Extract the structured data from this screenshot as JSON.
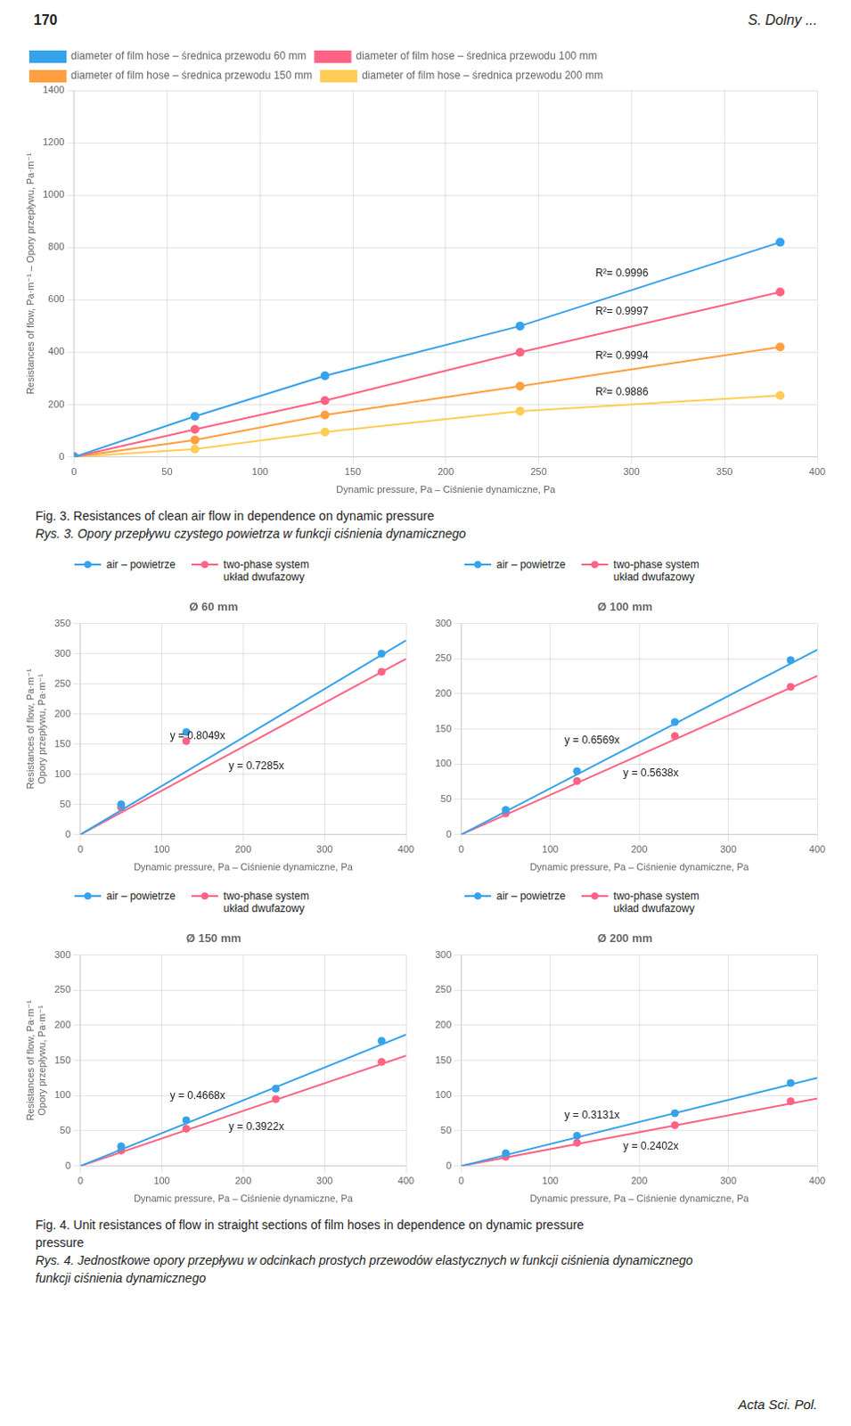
{
  "page": {
    "header_left": "170",
    "header_right": "S. Dolny ...",
    "footer": "Acta Sci. Pol.",
    "fig4_caption": {
      "english": [
        "Fig. 4. Unit resistances of flow in straight sections of film hoses in dependence on dynamic pressure",
        "pressure"
      ],
      "polish": [
        "Rys. 4. Jednostkowe opory przepływu w odcinkach prostych przewodów elastycznych w funkcji ciśnienia dynamicznego",
        "funkcji ciśnienia dynamicznego"
      ]
    }
  },
  "chart_data": [
    {
      "type": "line",
      "xlabel": "Dynamic pressure, Pa – Ciśnienie dynamiczne, Pa",
      "ylabel": "Resistances of flow, Pa·m⁻¹ – Opory przepływu, Pa·m⁻¹",
      "xlim": [
        0,
        400
      ],
      "ylim": [
        0,
        1400
      ],
      "xticks": [
        0,
        50,
        100,
        150,
        200,
        250,
        300,
        350,
        400
      ],
      "yticks": [
        0,
        200,
        400,
        600,
        800,
        1000,
        1200,
        1400
      ],
      "grid": true,
      "legend": "upper left",
      "caption": {
        "english": [
          "Fig. 3. Resistances of clean air flow in dependence on dynamic pressure"
        ],
        "polish": [
          "Rys. 3. Opory przepływu czystego powietrza w funkcji ciśnienia dynamicznego"
        ]
      },
      "series": [
        {
          "name": "diameter of film hose – średnica przewodu 60 mm",
          "x": [
            0,
            65,
            135,
            240,
            380
          ],
          "values": [
            0,
            155,
            310,
            500,
            820
          ],
          "marker": "circle",
          "annotation": "R²= 0.9996"
        },
        {
          "name": "diameter of film hose – średnica przewodu 100 mm",
          "x": [
            0,
            65,
            135,
            240,
            380
          ],
          "values": [
            0,
            105,
            215,
            400,
            630
          ],
          "marker": "circle",
          "annotation": "R²= 0.9997"
        },
        {
          "name": "diameter of film hose – średnica przewodu 150 mm",
          "x": [
            0,
            65,
            135,
            240,
            380
          ],
          "values": [
            0,
            65,
            160,
            270,
            420
          ],
          "marker": "circle",
          "annotation": "R²= 0.9994"
        },
        {
          "name": "diameter of film hose – średnica przewodu 200 mm",
          "x": [
            0,
            65,
            135,
            240,
            380
          ],
          "values": [
            0,
            30,
            95,
            175,
            235
          ],
          "marker": "circle",
          "annotation": "R²= 0.9886"
        }
      ]
    },
    {
      "type": "scatter",
      "title": "Ø 60 mm",
      "xlabel": "Dynamic pressure, Pa – Ciśnienie dynamiczne, Pa",
      "ylabel": [
        "Resistances of flow, Pa·m⁻¹",
        "Opory przepływu, Pa·m⁻¹"
      ],
      "xlim": [
        0,
        400
      ],
      "ylim": [
        0,
        350
      ],
      "xticks": [
        0,
        100,
        200,
        300,
        400
      ],
      "yticks": [
        0,
        50,
        100,
        150,
        200,
        250,
        300,
        350
      ],
      "grid": true,
      "legend": "upper left",
      "series": [
        {
          "name": "air – powietrze",
          "x": [
            50,
            130,
            370
          ],
          "values": [
            50,
            170,
            300
          ],
          "marker": "circle",
          "trend_x": [
            0,
            400
          ],
          "trend_values": [
            0,
            321.96
          ],
          "annotation": "y = 0.8049x"
        },
        {
          "name": "two-phase system\nukład dwufazowy",
          "x": [
            50,
            130,
            370
          ],
          "values": [
            45,
            155,
            270
          ],
          "marker": "circle",
          "trend_x": [
            0,
            400
          ],
          "trend_values": [
            0,
            291.4
          ],
          "annotation": "y = 0.7285x"
        }
      ]
    },
    {
      "type": "scatter",
      "title": "Ø 100 mm",
      "xlabel": "Dynamic pressure, Pa – Ciśnienie dynamiczne, Pa",
      "xlim": [
        0,
        400
      ],
      "ylim": [
        0,
        300
      ],
      "xticks": [
        0,
        100,
        200,
        300,
        400
      ],
      "yticks": [
        0,
        50,
        100,
        150,
        200,
        250,
        300
      ],
      "grid": true,
      "legend": "upper left",
      "series": [
        {
          "name": "air – powietrze",
          "x": [
            50,
            130,
            240,
            370
          ],
          "values": [
            35,
            90,
            160,
            248
          ],
          "marker": "circle",
          "trend_x": [
            0,
            400
          ],
          "trend_values": [
            0,
            262.76
          ],
          "annotation": "y = 0.6569x"
        },
        {
          "name": "two-phase system\nukład dwufazowy",
          "x": [
            50,
            130,
            240,
            370
          ],
          "values": [
            30,
            76,
            140,
            210
          ],
          "marker": "circle",
          "trend_x": [
            0,
            400
          ],
          "trend_values": [
            0,
            225.52
          ],
          "annotation": "y = 0.5638x"
        }
      ]
    },
    {
      "type": "scatter",
      "title": "Ø 150 mm",
      "xlabel": "Dynamic pressure, Pa – Ciśnienie dynamiczne, Pa",
      "ylabel": [
        "Resistances of flow, Pa·m⁻¹",
        "Opory przepływu, Pa·m⁻¹"
      ],
      "xlim": [
        0,
        400
      ],
      "ylim": [
        0,
        300
      ],
      "xticks": [
        0,
        100,
        200,
        300,
        400
      ],
      "yticks": [
        0,
        50,
        100,
        150,
        200,
        250,
        300
      ],
      "grid": true,
      "legend": "upper left",
      "series": [
        {
          "name": "air – powietrze",
          "x": [
            50,
            130,
            240,
            370
          ],
          "values": [
            28,
            65,
            110,
            178
          ],
          "marker": "circle",
          "trend_x": [
            0,
            400
          ],
          "trend_values": [
            0,
            186.72
          ],
          "annotation": "y = 0.4668x"
        },
        {
          "name": "two-phase system\nukład dwufazowy",
          "x": [
            50,
            130,
            240,
            370
          ],
          "values": [
            22,
            53,
            95,
            148
          ],
          "marker": "circle",
          "trend_x": [
            0,
            400
          ],
          "trend_values": [
            0,
            156.88
          ],
          "annotation": "y = 0.3922x"
        }
      ]
    },
    {
      "type": "scatter",
      "title": "Ø 200 mm",
      "xlabel": "Dynamic pressure, Pa – Ciśnienie dynamiczne, Pa",
      "xlim": [
        0,
        400
      ],
      "ylim": [
        0,
        300
      ],
      "xticks": [
        0,
        100,
        200,
        300,
        400
      ],
      "yticks": [
        0,
        50,
        100,
        150,
        200,
        250,
        300
      ],
      "grid": true,
      "legend": "upper left",
      "series": [
        {
          "name": "air – powietrze",
          "x": [
            50,
            130,
            240,
            370
          ],
          "values": [
            18,
            43,
            75,
            118
          ],
          "marker": "circle",
          "trend_x": [
            0,
            400
          ],
          "trend_values": [
            0,
            125.24
          ],
          "annotation": "y = 0.3131x"
        },
        {
          "name": "two-phase system\nukład dwufazowy",
          "x": [
            50,
            130,
            240,
            370
          ],
          "values": [
            13,
            33,
            58,
            92
          ],
          "marker": "circle",
          "trend_x": [
            0,
            400
          ],
          "trend_values": [
            0,
            96.08
          ],
          "annotation": "y = 0.2402x"
        }
      ]
    }
  ]
}
